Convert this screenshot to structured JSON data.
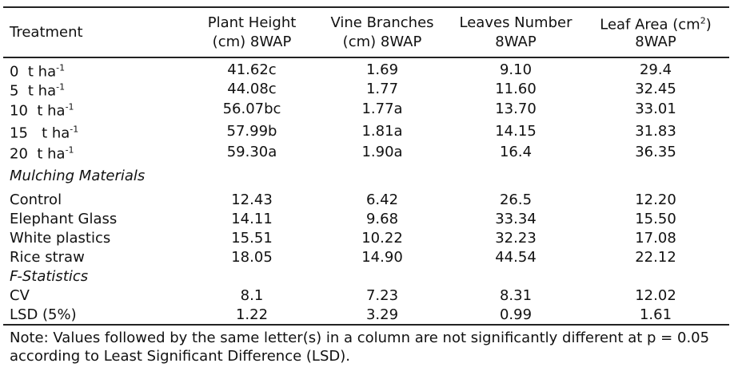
{
  "header": {
    "treatment": "Treatment",
    "columns": [
      {
        "line1": "Plant Height",
        "line2": "(cm) 8WAP"
      },
      {
        "line1": "Vine Branches",
        "line2": "(cm) 8WAP"
      },
      {
        "line1": "Leaves Number",
        "line2": "8WAP"
      },
      {
        "line1": "Leaf Area (cm",
        "sup": "2",
        "line1_end": ")",
        "line2": "8WAP"
      }
    ]
  },
  "rows": [
    {
      "label": "0  t ha",
      "sup": "-1",
      "values": [
        "41.62c",
        "1.69",
        "9.10",
        "29.4"
      ]
    },
    {
      "label": "5  t ha",
      "sup": "-1",
      "values": [
        "44.08c",
        "1.77",
        "11.60",
        "32.45"
      ]
    },
    {
      "label": "10  t ha",
      "sup": "-1",
      "values": [
        "56.07bc",
        "1.77a",
        "13.70",
        "33.01"
      ]
    },
    {
      "label": "15   t ha",
      "sup": "-1",
      "values": [
        "57.99b",
        "1.81a",
        "14.15",
        "31.83"
      ]
    },
    {
      "label": "20  t ha",
      "sup": "-1",
      "values": [
        "59.30a",
        "1.90a",
        "16.4",
        "36.35"
      ]
    },
    {
      "section": "Mulching Materials"
    },
    {
      "label": "Control",
      "values": [
        "12.43",
        "6.42",
        "26.5",
        "12.20"
      ]
    },
    {
      "label": "Elephant Glass",
      "values": [
        "14.11",
        "9.68",
        "33.34",
        "15.50"
      ]
    },
    {
      "label": "White plastics",
      "values": [
        "15.51",
        "10.22",
        "32.23",
        "17.08"
      ]
    },
    {
      "label": "Rice straw",
      "values": [
        "18.05",
        "14.90",
        "44.54",
        "22.12"
      ]
    },
    {
      "section": "F-Statistics"
    },
    {
      "label": "CV",
      "values": [
        "8.1",
        "7.23",
        "8.31",
        "12.02"
      ]
    },
    {
      "label": "LSD (5%)",
      "values": [
        "1.22",
        "3.29",
        "0.99",
        "1.61"
      ]
    }
  ],
  "note": "Note: Values followed by the same letter(s) in a column are not significantly different at p = 0.05 according to Least Significant Difference (LSD)."
}
